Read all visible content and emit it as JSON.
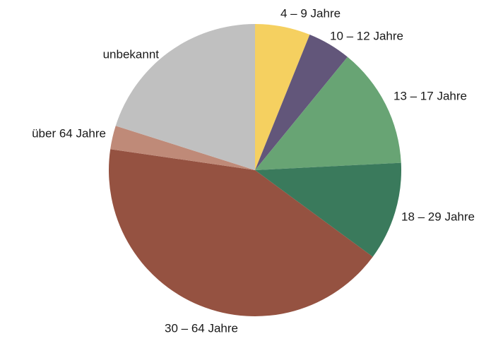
{
  "chart_data": {
    "type": "pie",
    "categories": [
      "4 – 9 Jahre",
      "10 – 12 Jahre",
      "13 – 17 Jahre",
      "18 – 29 Jahre",
      "30 – 64 Jahre",
      "über 64 Jahre",
      "unbekannt"
    ],
    "values": [
      6.1,
      4.8,
      13.3,
      10.9,
      42.2,
      2.6,
      20.1
    ],
    "colors": [
      "#f5d060",
      "#62567a",
      "#68a474",
      "#3a7a5c",
      "#955241",
      "#bf8a78",
      "#c0c0c0"
    ]
  }
}
